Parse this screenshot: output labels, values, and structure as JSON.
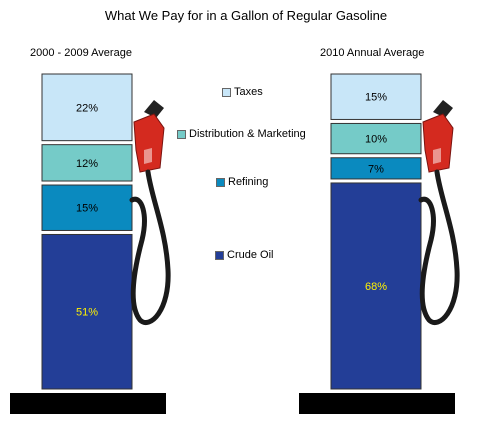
{
  "chart_data": {
    "type": "bar",
    "title": "What We Pay for in a Gallon of Regular Gasoline",
    "stacked": true,
    "categories": [
      "2000 - 2009 Average",
      "2010 Annual Average"
    ],
    "series": [
      {
        "name": "Crude Oil",
        "color": "#233e97",
        "values": [
          51,
          68
        ],
        "labels": [
          "51%",
          "68%"
        ]
      },
      {
        "name": "Refining",
        "color": "#0a8abf",
        "values": [
          15,
          7
        ],
        "labels": [
          "15%",
          "7%"
        ]
      },
      {
        "name": "Distribution & Marketing",
        "color": "#75cbc8",
        "values": [
          12,
          10
        ],
        "labels": [
          "12%",
          "10%"
        ]
      },
      {
        "name": "Taxes",
        "color": "#c8e6f8",
        "values": [
          22,
          15
        ],
        "labels": [
          "22%",
          "15%"
        ]
      }
    ],
    "legend_order": [
      "Taxes",
      "Distribution & Marketing",
      "Refining",
      "Crude Oil"
    ]
  },
  "colors": {
    "label_on_dark": "#fff200",
    "label_on_light": "#000000",
    "nozzle_red": "#d42a1f",
    "hose": "#1a1a1a",
    "base": "#000000"
  },
  "icons": [
    "gas-nozzle-icon",
    "fuel-hose-icon"
  ]
}
